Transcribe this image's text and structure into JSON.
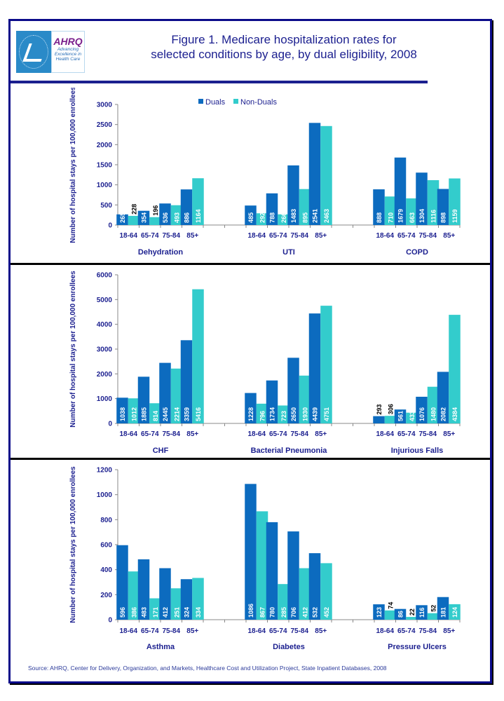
{
  "header": {
    "title_line1": "Figure 1. Medicare hospitalization rates for",
    "title_line2": "selected conditions by age, by dual eligibility, 2008",
    "logo": {
      "name": "AHRQ",
      "tagline1": "Advancing",
      "tagline2": "Excellence in",
      "tagline3": "Health Care"
    }
  },
  "colors": {
    "duals": "#0c6bbf",
    "non_duals": "#33cccc",
    "text": "#1b1f8f",
    "frame": "#0b0b8a"
  },
  "source": "Source: AHRQ, Center for Delivery, Organization, and Markets, Healthcare Cost and Utilization Project, State Inpatient Databases, 2008",
  "chart_data": [
    {
      "type": "bar",
      "title": "",
      "ylabel": "Number of hospital stays per 100,000 enrollees",
      "xlabel": "",
      "ylim": [
        0,
        3000
      ],
      "yticks": [
        0,
        500,
        1000,
        1500,
        2000,
        2500,
        3000
      ],
      "legend": {
        "position": "top",
        "entries": [
          "Duals",
          "Non-Duals"
        ]
      },
      "age_groups": [
        "18-64",
        "65-74",
        "75-84",
        "85+"
      ],
      "groups": [
        {
          "condition": "Dehydration",
          "duals": [
            265,
            354,
            536,
            886
          ],
          "non_duals": [
            228,
            196,
            493,
            1164
          ]
        },
        {
          "condition": "UTI",
          "duals": [
            485,
            788,
            1483,
            2541
          ],
          "non_duals": [
            292,
            266,
            895,
            2463
          ]
        },
        {
          "condition": "COPD",
          "duals": [
            888,
            1679,
            1304,
            898
          ],
          "non_duals": [
            710,
            663,
            1116,
            1159
          ]
        }
      ]
    },
    {
      "type": "bar",
      "title": "",
      "ylabel": "Number of hospital stays per 100,000 enrollees",
      "xlabel": "",
      "ylim": [
        0,
        6000
      ],
      "yticks": [
        0,
        1000,
        2000,
        3000,
        4000,
        5000,
        6000
      ],
      "legend": null,
      "age_groups": [
        "18-64",
        "65-74",
        "75-84",
        "85+"
      ],
      "groups": [
        {
          "condition": "CHF",
          "duals": [
            1038,
            1885,
            2445,
            3359
          ],
          "non_duals": [
            1012,
            814,
            2214,
            5416
          ]
        },
        {
          "condition": "Bacterial Pneumonia",
          "duals": [
            1228,
            1734,
            2650,
            4439
          ],
          "non_duals": [
            796,
            723,
            1930,
            4751
          ]
        },
        {
          "condition": "Injurious Falls",
          "duals": [
            293,
            561,
            1076,
            2082
          ],
          "non_duals": [
            306,
            433,
            1480,
            4384
          ]
        }
      ]
    },
    {
      "type": "bar",
      "title": "",
      "ylabel": "Number of hospital stays per 100,000 enrollees",
      "xlabel": "",
      "ylim": [
        0,
        1200
      ],
      "yticks": [
        0,
        200,
        400,
        600,
        800,
        1000,
        1200
      ],
      "legend": null,
      "age_groups": [
        "18-64",
        "65-74",
        "75-84",
        "85+"
      ],
      "groups": [
        {
          "condition": "Asthma",
          "duals": [
            596,
            483,
            412,
            324
          ],
          "non_duals": [
            386,
            171,
            251,
            334
          ]
        },
        {
          "condition": "Diabetes",
          "duals": [
            1086,
            780,
            706,
            532
          ],
          "non_duals": [
            867,
            285,
            412,
            452
          ]
        },
        {
          "condition": "Pressure Ulcers",
          "duals": [
            123,
            86,
            116,
            181
          ],
          "non_duals": [
            74,
            22,
            52,
            124
          ]
        }
      ]
    }
  ]
}
